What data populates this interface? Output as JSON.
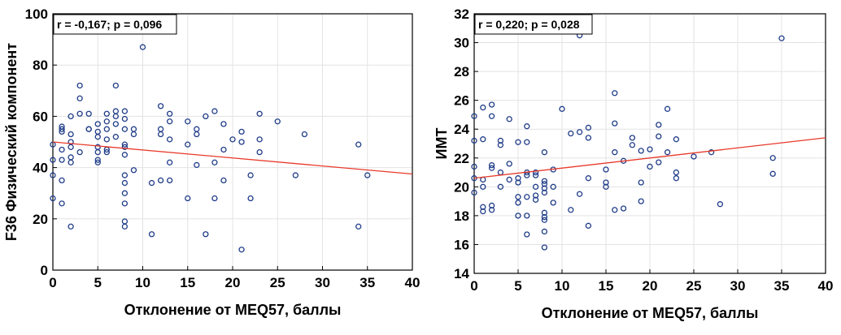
{
  "chart_data": [
    {
      "type": "scatter",
      "title": "",
      "xlabel": "Отклонение от MEQ57, баллы",
      "ylabel": "F36 Физический компонент",
      "xlim": [
        0,
        40
      ],
      "ylim": [
        0,
        100
      ],
      "xticks": [
        "0",
        "5",
        "10",
        "15",
        "20",
        "25",
        "30",
        "35",
        "40"
      ],
      "yticks": [
        "0",
        "20",
        "40",
        "60",
        "80",
        "100"
      ],
      "grid": true,
      "annotation": "r = -0,167; p = 0,096",
      "regression": {
        "x0": 0,
        "y0": 50,
        "x1": 40,
        "y1": 37.5
      },
      "marker_color": "#1f3c88",
      "line_color": "#e8392a",
      "x": [
        0,
        0,
        0,
        0,
        1,
        1,
        1,
        1,
        1,
        1,
        1,
        2,
        2,
        2,
        2,
        2,
        2,
        2,
        3,
        3,
        3,
        3,
        4,
        4,
        4,
        5,
        5,
        5,
        5,
        5,
        5,
        5,
        6,
        6,
        6,
        6,
        6,
        6,
        7,
        7,
        7,
        7,
        7,
        8,
        8,
        8,
        8,
        8,
        8,
        8,
        8,
        8,
        8,
        8,
        8,
        9,
        9,
        9,
        10,
        11,
        11,
        12,
        12,
        12,
        12,
        13,
        13,
        13,
        13,
        13,
        15,
        15,
        15,
        16,
        16,
        16,
        17,
        17,
        18,
        18,
        18,
        19,
        19,
        19,
        20,
        21,
        21,
        21,
        22,
        22,
        23,
        23,
        23,
        25,
        27,
        28,
        34,
        34,
        35
      ],
      "y": [
        49,
        43,
        37,
        28,
        56,
        54,
        47,
        43,
        35,
        26,
        55,
        60,
        53,
        50,
        48,
        44,
        42,
        17,
        72,
        67,
        61,
        46,
        61,
        55,
        55,
        54,
        52,
        48,
        46,
        43,
        42,
        57,
        61,
        58,
        55,
        51,
        47,
        46,
        72,
        62,
        60,
        57,
        52,
        62,
        59,
        55,
        49,
        48,
        45,
        37,
        34,
        26,
        19,
        17,
        30,
        55,
        53,
        39,
        87,
        34,
        14,
        64,
        55,
        53,
        35,
        61,
        58,
        51,
        35,
        42,
        58,
        49,
        28,
        55,
        53,
        41,
        60,
        14,
        62,
        42,
        28,
        57,
        47,
        35,
        51,
        54,
        50,
        8,
        37,
        28,
        61,
        51,
        46,
        58,
        37,
        53,
        49,
        17,
        37
      ]
    },
    {
      "type": "scatter",
      "title": "",
      "xlabel": "Отклонение от MEQ57, баллы",
      "ylabel": "ИМТ",
      "xlim": [
        0,
        40
      ],
      "ylim": [
        14,
        32
      ],
      "xticks": [
        "0",
        "5",
        "10",
        "15",
        "20",
        "25",
        "30",
        "35",
        "40"
      ],
      "yticks": [
        "14",
        "16",
        "18",
        "20",
        "22",
        "24",
        "26",
        "28",
        "30",
        "32"
      ],
      "grid": true,
      "annotation": "r = 0,220; p = 0,028",
      "regression": {
        "x0": 0,
        "y0": 20.6,
        "x1": 40,
        "y1": 23.4
      },
      "marker_color": "#1f3c88",
      "line_color": "#e8392a",
      "x": [
        0,
        0,
        0,
        0,
        0,
        1,
        1,
        1,
        1,
        1,
        1,
        2,
        2,
        2,
        2,
        2,
        2,
        3,
        3,
        3,
        3,
        4,
        4,
        4,
        5,
        5,
        5,
        5,
        5,
        5,
        6,
        6,
        6,
        6,
        6,
        6,
        6,
        7,
        7,
        7,
        7,
        7,
        8,
        8,
        8,
        8,
        8,
        8,
        8,
        8,
        8,
        8,
        9,
        9,
        9,
        10,
        11,
        11,
        12,
        12,
        12,
        13,
        13,
        13,
        13,
        15,
        15,
        15,
        16,
        16,
        16,
        16,
        17,
        17,
        18,
        18,
        19,
        19,
        19,
        20,
        20,
        21,
        21,
        21,
        22,
        22,
        23,
        23,
        23,
        25,
        27,
        28,
        34,
        34,
        35
      ],
      "y": [
        24.9,
        23.2,
        21.4,
        20.6,
        19.6,
        25.5,
        23.3,
        20.5,
        20.0,
        18.6,
        18.3,
        25.7,
        24.9,
        21.5,
        21.3,
        18.7,
        18.4,
        23.2,
        22.9,
        21.0,
        20.0,
        24.7,
        21.6,
        20.5,
        23.1,
        20.6,
        20.3,
        19.3,
        18.9,
        18.0,
        24.2,
        23.1,
        21.0,
        20.8,
        19.3,
        18.0,
        16.7,
        21.0,
        20.8,
        20.0,
        19.4,
        19.1,
        22.4,
        20.4,
        20.2,
        19.9,
        19.6,
        18.2,
        17.9,
        17.7,
        16.9,
        15.8,
        21.2,
        20.0,
        18.9,
        25.4,
        23.7,
        18.4,
        30.5,
        23.8,
        19.5,
        24.1,
        23.4,
        20.6,
        17.3,
        21.2,
        20.3,
        20.0,
        26.5,
        24.4,
        22.4,
        18.4,
        21.8,
        18.5,
        23.4,
        22.9,
        22.5,
        20.3,
        19.0,
        22.6,
        21.4,
        24.3,
        23.5,
        21.7,
        25.4,
        22.4,
        23.3,
        21.0,
        20.6,
        22.1,
        22.4,
        18.8,
        22.0,
        20.9,
        30.3
      ]
    }
  ]
}
